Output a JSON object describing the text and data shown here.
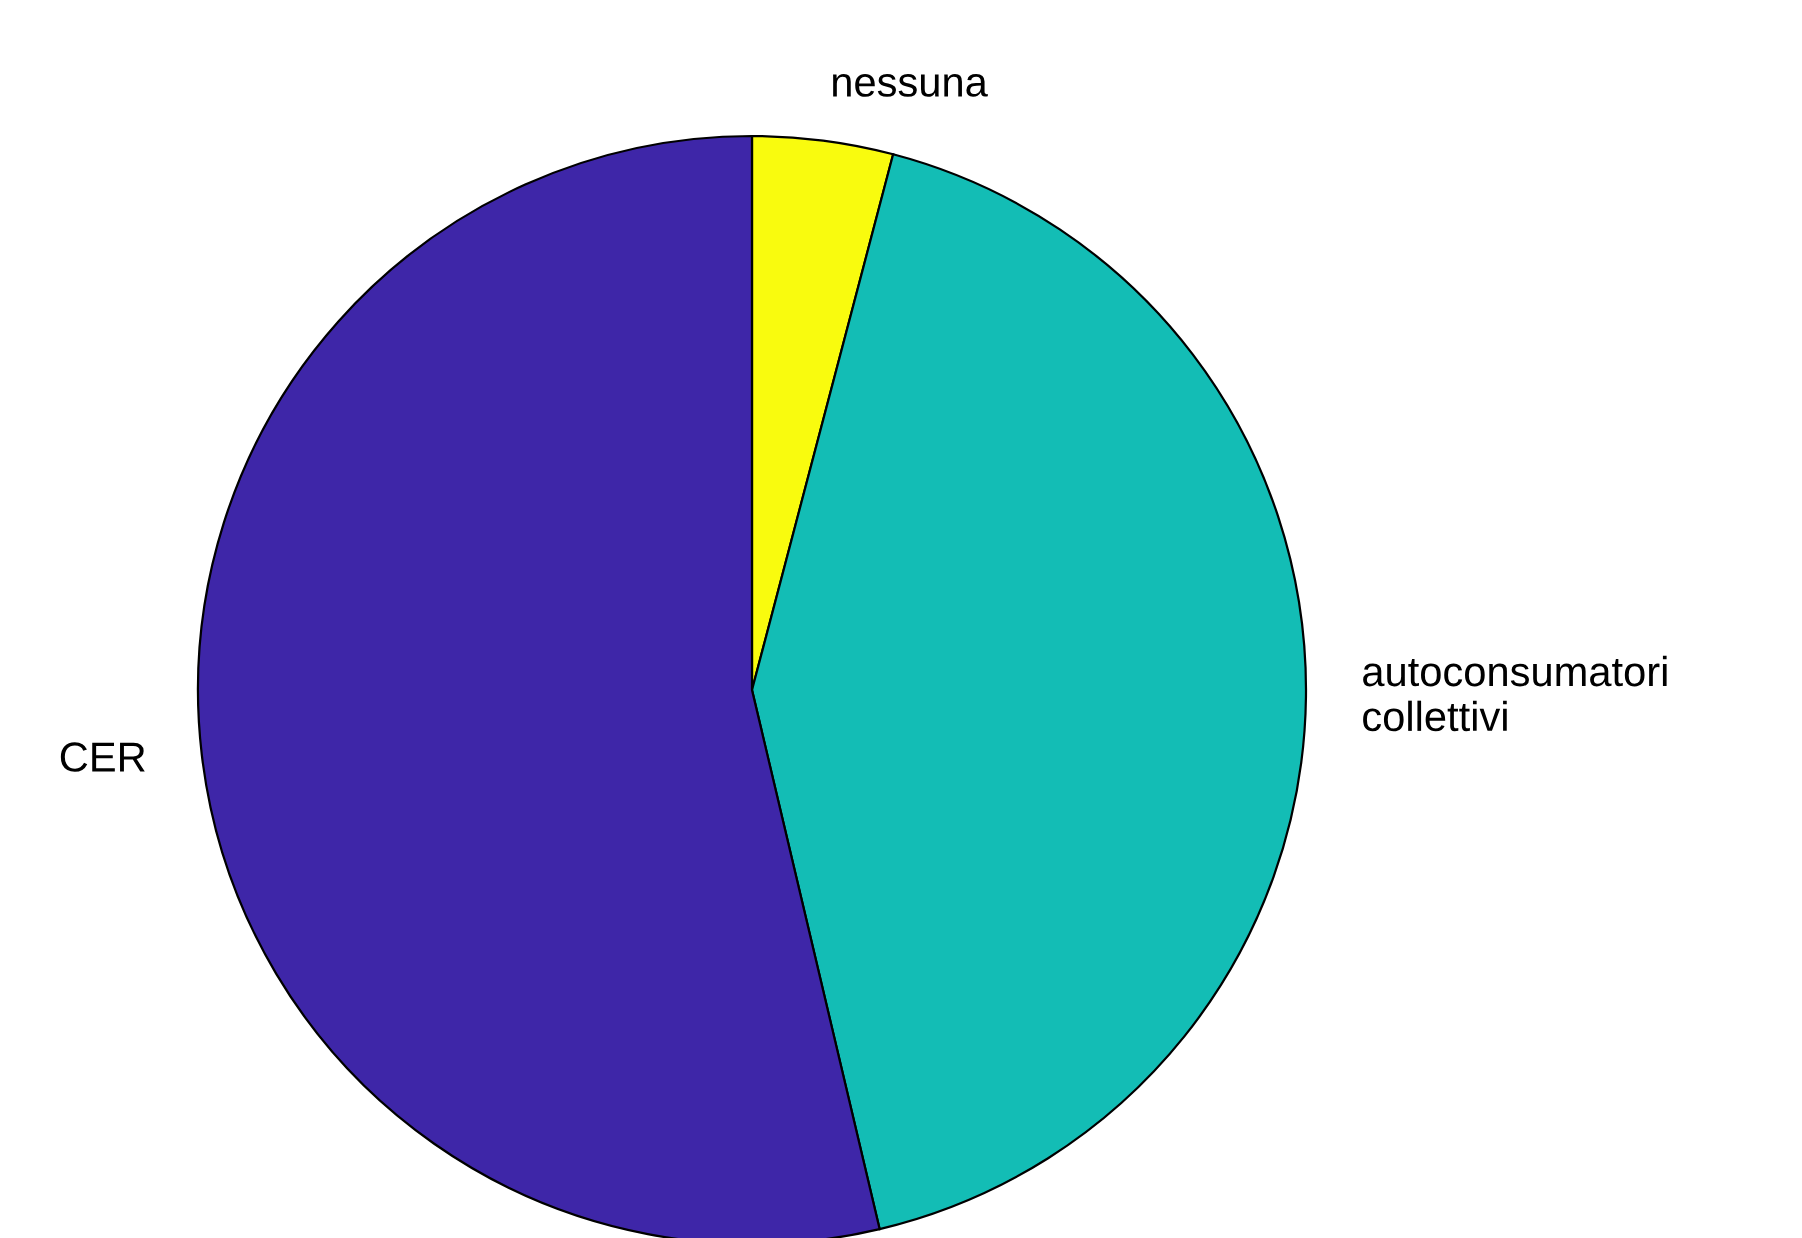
{
  "chart_data": {
    "type": "pie",
    "categories": [
      "nessuna",
      "autoconsumatori\ncollettivi",
      "CER"
    ],
    "values": [
      4.1,
      42.2,
      53.7
    ],
    "colors": [
      "#f9fb0e",
      "#13bdb5",
      "#3e26a8"
    ]
  }
}
